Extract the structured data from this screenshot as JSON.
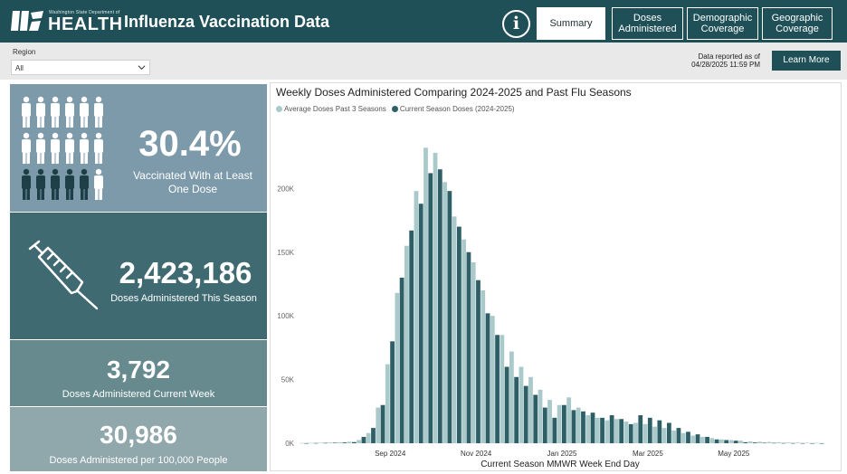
{
  "header": {
    "logo_small": "Washington State Department of",
    "logo_big": "HEALTH",
    "title": "Influenza Vaccination Data",
    "info_icon": "info-icon",
    "nav": [
      {
        "label": "Summary",
        "active": true
      },
      {
        "label": "Doses Administered",
        "active": false
      },
      {
        "label": "Demographic Coverage",
        "active": false
      },
      {
        "label": "Geographic Coverage",
        "active": false
      }
    ]
  },
  "filter": {
    "region_label": "Region",
    "region_value": "All",
    "reported_line1": "Data reported as of",
    "reported_line2": "04/28/2025 11:59 PM",
    "learn_more": "Learn More"
  },
  "kpis": {
    "vaccinated_pct": "30.4%",
    "vaccinated_label": "Vaccinated With at Least One Dose",
    "doses_season": "2,423,186",
    "doses_season_label": "Doses Administered This Season",
    "doses_week": "3,792",
    "doses_week_label": "Doses Administered Current Week",
    "doses_per_100k": "30,986",
    "doses_per_100k_label": "Doses Administered per 100,000 People",
    "people_icon": "people-icon",
    "syringe_icon": "syringe-icon"
  },
  "colors": {
    "header": "#1f4f57",
    "avg_series": "#a9c9cb",
    "current_series": "#2f5f66"
  },
  "chart_data": {
    "type": "bar",
    "title": "Weekly Doses Administered Comparing 2024-2025 and Past Flu Seasons",
    "xlabel": "Current Season MMWR Week End Day",
    "ylabel": "",
    "ylim": [
      0,
      240000
    ],
    "y_ticks": [
      0,
      50000,
      100000,
      150000,
      200000
    ],
    "y_tick_labels": [
      "0K",
      "50K",
      "100K",
      "150K",
      "200K"
    ],
    "x_tick_labels": [
      "Sep 2024",
      "Nov 2024",
      "Jan 2025",
      "Mar 2025",
      "May 2025"
    ],
    "x_tick_weeks": [
      9,
      18,
      27,
      36,
      45
    ],
    "legend_position": "top-left",
    "series": [
      {
        "name": "Average Doses Past 3 Seasons",
        "color": "#a9c9cb",
        "values": [
          200,
          300,
          400,
          600,
          800,
          1200,
          2500,
          8000,
          28000,
          62000,
          118000,
          155000,
          198000,
          232000,
          228000,
          205000,
          178000,
          160000,
          142000,
          120000,
          100000,
          85000,
          72000,
          60000,
          52000,
          42000,
          34000,
          30000,
          36000,
          28000,
          22000,
          20000,
          18000,
          19000,
          17000,
          16000,
          15000,
          13000,
          12000,
          10000,
          8000,
          6000,
          5000,
          4000,
          3000,
          2500,
          2000,
          1500,
          1200,
          1000,
          800,
          600,
          500,
          400,
          300
        ]
      },
      {
        "name": "Current Season Doses (2024-2025)",
        "color": "#2f5f66",
        "values": [
          100,
          200,
          300,
          400,
          600,
          900,
          5000,
          12000,
          30000,
          80000,
          130000,
          167000,
          188000,
          212000,
          215000,
          198000,
          170000,
          150000,
          128000,
          102000,
          85000,
          60000,
          52000,
          45000,
          38000,
          28000,
          20000,
          30000,
          26000,
          25000,
          24000,
          20000,
          22000,
          19000,
          15000,
          22000,
          20000,
          18000,
          16000,
          12000,
          9000,
          7000,
          5000,
          3000,
          2500,
          2000,
          800,
          600,
          400,
          300,
          200,
          150,
          100,
          80,
          60
        ]
      }
    ]
  }
}
